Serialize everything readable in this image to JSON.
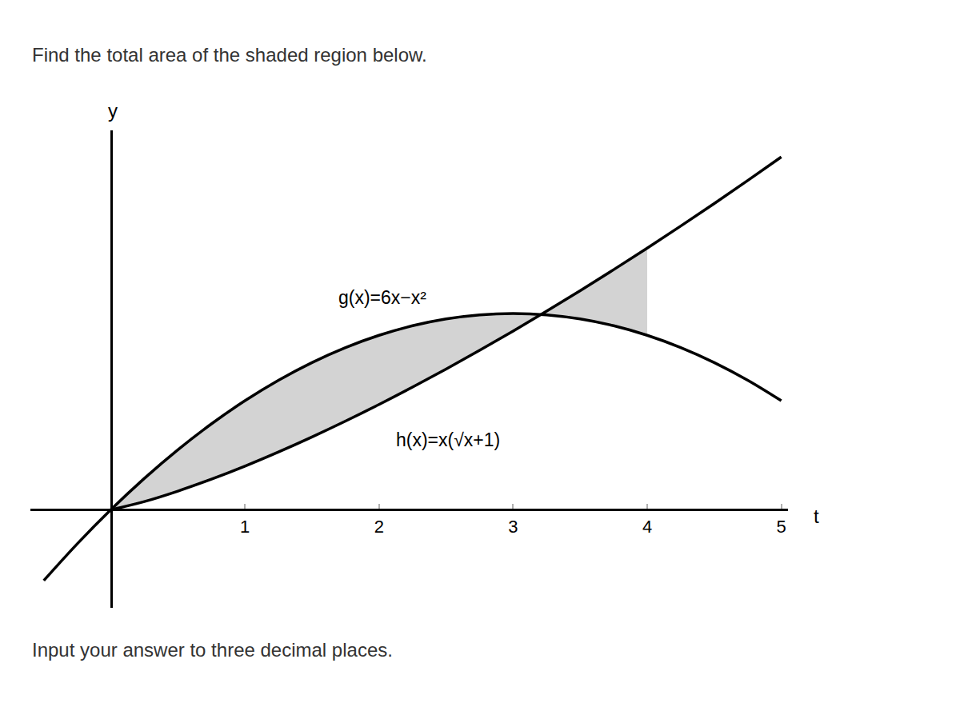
{
  "chart_data": {
    "type": "line",
    "title": "Find the total area of the shaded region below.",
    "subtitle": "Input your answer to three decimal places.",
    "xlabel": "t",
    "ylabel": "y",
    "xlim": [
      -0.6,
      5.05
    ],
    "ylim": [
      -4.5,
      17.4
    ],
    "xticks": [
      1,
      2,
      3,
      4,
      5
    ],
    "yticks": [],
    "tick_labels": "x",
    "grid": false,
    "shade_x": [
      0,
      4
    ],
    "series": [
      {
        "name": "g(x)=6x−x²",
        "color": "#000000",
        "line_style": "solid",
        "x": [
          -0.5,
          -0.25,
          0,
          0.25,
          0.5,
          0.75,
          1,
          1.25,
          1.5,
          1.75,
          2,
          2.25,
          2.5,
          2.75,
          3,
          3.25,
          3.5,
          3.75,
          4,
          4.25,
          4.5,
          4.75,
          5
        ],
        "values": [
          -3.25,
          -1.5625,
          0,
          1.4375,
          2.75,
          3.9375,
          5,
          5.9375,
          6.75,
          7.4375,
          8,
          8.4375,
          8.75,
          8.9375,
          9,
          8.9375,
          8.75,
          8.4375,
          8,
          7.4375,
          6.75,
          5.9375,
          5
        ]
      },
      {
        "name": "h(x)=x(√x+1)",
        "color": "#000000",
        "line_style": "solid",
        "x": [
          0,
          0.25,
          0.5,
          0.75,
          1,
          1.25,
          1.5,
          1.75,
          2,
          2.25,
          2.5,
          2.75,
          3,
          3.25,
          3.5,
          3.75,
          4,
          4.25,
          4.5,
          4.75,
          5
        ],
        "values": [
          0,
          0.375,
          0.854,
          1.4,
          2,
          2.648,
          3.337,
          4.065,
          4.828,
          5.625,
          6.453,
          7.31,
          8.196,
          9.109,
          10.048,
          11.012,
          12,
          13.012,
          14.046,
          15.102,
          16.18
        ]
      }
    ],
    "shade_color": "#d3d3d3"
  }
}
